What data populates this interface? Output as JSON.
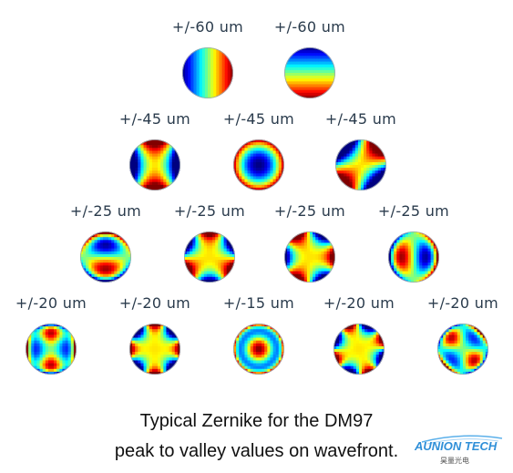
{
  "rows": [
    [
      {
        "label": "+/-60 um",
        "mode": "tilt-x"
      },
      {
        "label": "+/-60 um",
        "mode": "tilt-y"
      }
    ],
    [
      {
        "label": "+/-45 um",
        "mode": "astig-a"
      },
      {
        "label": "+/-45 um",
        "mode": "defocus"
      },
      {
        "label": "+/-45 um",
        "mode": "astig-b"
      }
    ],
    [
      {
        "label": "+/-25 um",
        "mode": "coma-y"
      },
      {
        "label": "+/-25 um",
        "mode": "trefoil-a"
      },
      {
        "label": "+/-25 um",
        "mode": "trefoil-b"
      },
      {
        "label": "+/-25 um",
        "mode": "coma-x"
      }
    ],
    [
      {
        "label": "+/-20 um",
        "mode": "tetrafoil-a"
      },
      {
        "label": "+/-20 um",
        "mode": "tetrafoil-b"
      },
      {
        "label": "+/-15 um",
        "mode": "spherical"
      },
      {
        "label": "+/-20 um",
        "mode": "tetrafoil-c"
      },
      {
        "label": "+/-20 um",
        "mode": "sec-astig"
      }
    ]
  ],
  "caption": {
    "line1": "Typical Zernike for the DM97",
    "line2": "peak to valley values on wavefront."
  },
  "logo": {
    "brand": "AUNION TECH",
    "sub": "昊量光电"
  },
  "colors": {
    "label_text": "#2a3b4c",
    "logo_blue": "#2f8fd8"
  }
}
